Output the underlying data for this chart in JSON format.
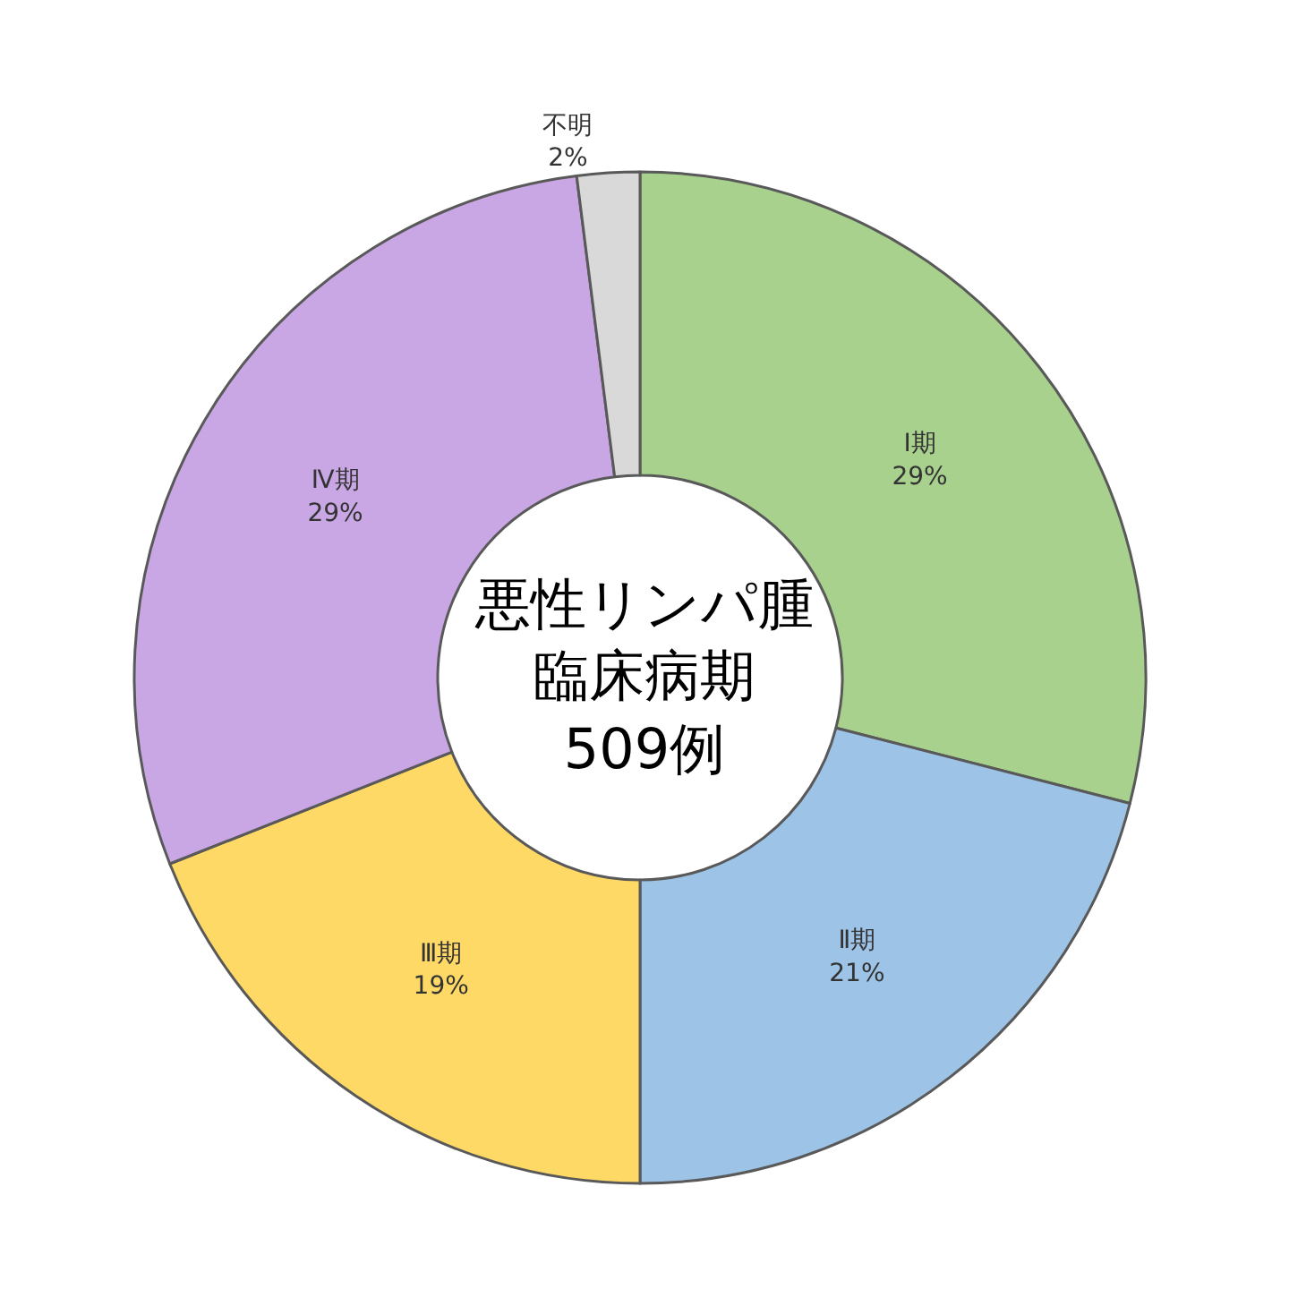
{
  "chart_data": {
    "type": "donut",
    "title": "悪性リンパ腫臨床病期",
    "subtitle": "509例",
    "categories": [
      "Ⅰ期",
      "Ⅱ期",
      "Ⅲ期",
      "Ⅳ期",
      "不明"
    ],
    "values": [
      29,
      21,
      19,
      29,
      2
    ],
    "value_labels": [
      "29%",
      "21%",
      "19%",
      "29%",
      "2%"
    ],
    "colors": [
      "#a9d18e",
      "#9dc3e6",
      "#ffd966",
      "#c9a6e4",
      "#d9d9d9"
    ],
    "legend": false
  }
}
